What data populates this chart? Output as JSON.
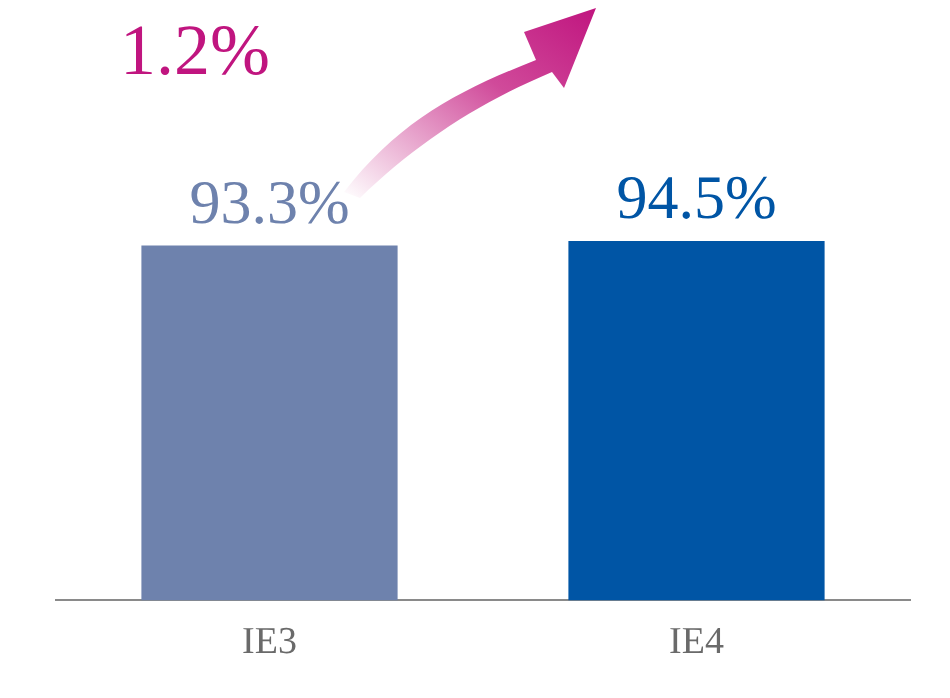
{
  "chart_data": {
    "type": "bar",
    "categories": [
      "IE3",
      "IE4"
    ],
    "values": [
      93.3,
      94.5
    ],
    "colors": [
      "#6e82ad",
      "#0055a5"
    ],
    "value_labels": [
      "93.3%",
      "94.5%"
    ],
    "annotations": [
      "1.2%"
    ],
    "grid": false,
    "legend": false
  }
}
